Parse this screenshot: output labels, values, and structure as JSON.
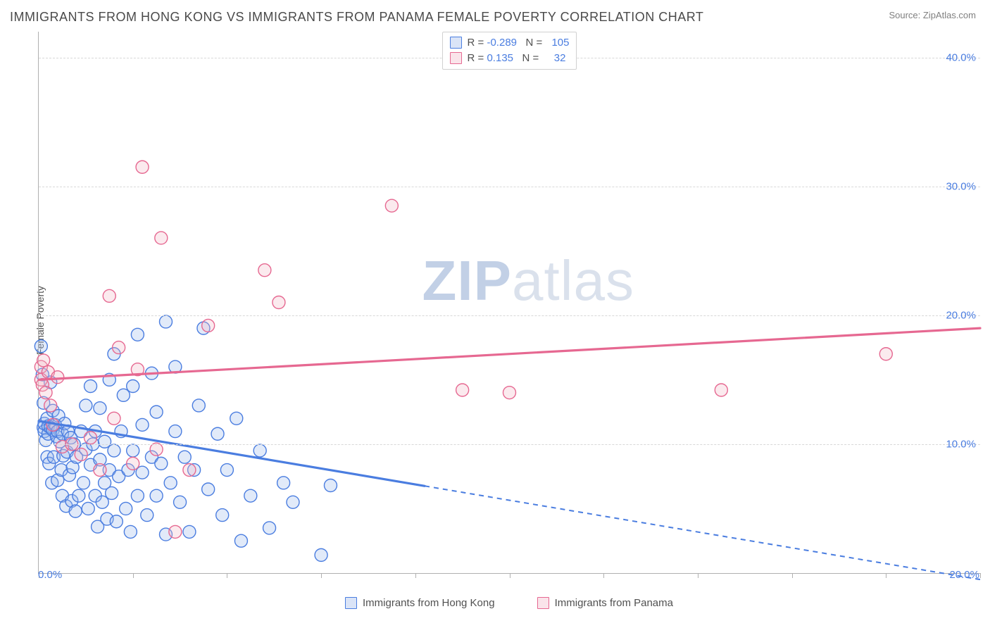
{
  "title": "IMMIGRANTS FROM HONG KONG VS IMMIGRANTS FROM PANAMA FEMALE POVERTY CORRELATION CHART",
  "source_prefix": "Source: ",
  "source_name": "ZipAtlas.com",
  "y_axis_label": "Female Poverty",
  "watermark_a": "ZIP",
  "watermark_b": "atlas",
  "chart": {
    "type": "scatter",
    "background_color": "#ffffff",
    "grid_color": "#d8d8d8",
    "axis_color": "#b0b0b0",
    "tick_label_color": "#4a7de0",
    "xlim": [
      0,
      20
    ],
    "ylim": [
      0,
      42
    ],
    "x_ticks": [
      0,
      2,
      4,
      6,
      8,
      10,
      12,
      14,
      16,
      18,
      20
    ],
    "x_tick_labels": {
      "0": "0.0%",
      "20": "20.0%"
    },
    "y_gridlines": [
      10,
      20,
      30,
      40
    ],
    "y_tick_labels": {
      "10": "10.0%",
      "20": "20.0%",
      "30": "30.0%",
      "40": "40.0%"
    },
    "marker_radius": 9,
    "marker_stroke_width": 1.4,
    "marker_fill_opacity": 0.3,
    "line_width": 3.2,
    "series": [
      {
        "name": "Immigrants from Hong Kong",
        "color_fill": "#9cb8ea",
        "color_stroke": "#4a7de0",
        "r_label": "R =",
        "r_value": "-0.289",
        "n_label": "N =",
        "n_value": "105",
        "trend": {
          "y_at_x0": 11.8,
          "y_at_x20": -0.5,
          "solid_until_x": 8.2
        },
        "points": [
          [
            0.05,
            17.6
          ],
          [
            0.08,
            15.4
          ],
          [
            0.1,
            13.2
          ],
          [
            0.1,
            11.3
          ],
          [
            0.12,
            11.0
          ],
          [
            0.12,
            11.6
          ],
          [
            0.15,
            10.3
          ],
          [
            0.18,
            9.0
          ],
          [
            0.18,
            12.0
          ],
          [
            0.2,
            11.4
          ],
          [
            0.2,
            10.8
          ],
          [
            0.22,
            8.5
          ],
          [
            0.25,
            11.3
          ],
          [
            0.25,
            14.8
          ],
          [
            0.28,
            7.0
          ],
          [
            0.3,
            11.1
          ],
          [
            0.3,
            12.6
          ],
          [
            0.32,
            9.0
          ],
          [
            0.35,
            11.5
          ],
          [
            0.38,
            10.6
          ],
          [
            0.4,
            7.2
          ],
          [
            0.4,
            11.0
          ],
          [
            0.42,
            12.2
          ],
          [
            0.45,
            10.2
          ],
          [
            0.48,
            8.0
          ],
          [
            0.5,
            6.0
          ],
          [
            0.5,
            10.8
          ],
          [
            0.52,
            9.1
          ],
          [
            0.55,
            11.6
          ],
          [
            0.58,
            5.2
          ],
          [
            0.6,
            9.4
          ],
          [
            0.62,
            11.0
          ],
          [
            0.65,
            7.6
          ],
          [
            0.68,
            10.5
          ],
          [
            0.7,
            5.6
          ],
          [
            0.72,
            8.2
          ],
          [
            0.75,
            10.0
          ],
          [
            0.78,
            4.8
          ],
          [
            0.8,
            9.0
          ],
          [
            0.85,
            6.0
          ],
          [
            0.9,
            11.0
          ],
          [
            0.95,
            7.0
          ],
          [
            1.0,
            9.6
          ],
          [
            1.0,
            13.0
          ],
          [
            1.05,
            5.0
          ],
          [
            1.1,
            8.4
          ],
          [
            1.1,
            14.5
          ],
          [
            1.15,
            10.0
          ],
          [
            1.2,
            6.0
          ],
          [
            1.2,
            11.0
          ],
          [
            1.25,
            3.6
          ],
          [
            1.3,
            8.8
          ],
          [
            1.3,
            12.8
          ],
          [
            1.35,
            5.5
          ],
          [
            1.4,
            7.0
          ],
          [
            1.4,
            10.2
          ],
          [
            1.45,
            4.2
          ],
          [
            1.5,
            8.0
          ],
          [
            1.5,
            15.0
          ],
          [
            1.55,
            6.2
          ],
          [
            1.6,
            9.5
          ],
          [
            1.6,
            17.0
          ],
          [
            1.65,
            4.0
          ],
          [
            1.7,
            7.5
          ],
          [
            1.75,
            11.0
          ],
          [
            1.8,
            13.8
          ],
          [
            1.85,
            5.0
          ],
          [
            1.9,
            8.0
          ],
          [
            1.95,
            3.2
          ],
          [
            2.0,
            9.5
          ],
          [
            2.0,
            14.5
          ],
          [
            2.1,
            6.0
          ],
          [
            2.1,
            18.5
          ],
          [
            2.2,
            7.8
          ],
          [
            2.2,
            11.5
          ],
          [
            2.3,
            4.5
          ],
          [
            2.4,
            9.0
          ],
          [
            2.4,
            15.5
          ],
          [
            2.5,
            6.0
          ],
          [
            2.5,
            12.5
          ],
          [
            2.6,
            8.5
          ],
          [
            2.7,
            3.0
          ],
          [
            2.7,
            19.5
          ],
          [
            2.8,
            7.0
          ],
          [
            2.9,
            11.0
          ],
          [
            2.9,
            16.0
          ],
          [
            3.0,
            5.5
          ],
          [
            3.1,
            9.0
          ],
          [
            3.2,
            3.2
          ],
          [
            3.3,
            8.0
          ],
          [
            3.4,
            13.0
          ],
          [
            3.5,
            19.0
          ],
          [
            3.6,
            6.5
          ],
          [
            3.8,
            10.8
          ],
          [
            3.9,
            4.5
          ],
          [
            4.0,
            8.0
          ],
          [
            4.2,
            12.0
          ],
          [
            4.3,
            2.5
          ],
          [
            4.5,
            6.0
          ],
          [
            4.7,
            9.5
          ],
          [
            4.9,
            3.5
          ],
          [
            5.2,
            7.0
          ],
          [
            5.4,
            5.5
          ],
          [
            6.0,
            1.4
          ],
          [
            6.2,
            6.8
          ]
        ]
      },
      {
        "name": "Immigrants from Panama",
        "color_fill": "#f3b8c8",
        "color_stroke": "#e66891",
        "r_label": "R =",
        "r_value": "0.135",
        "n_label": "N =",
        "n_value": "32",
        "trend": {
          "y_at_x0": 15.0,
          "y_at_x20": 19.0,
          "solid_until_x": 20
        },
        "points": [
          [
            0.05,
            16.0
          ],
          [
            0.05,
            15.0
          ],
          [
            0.08,
            14.6
          ],
          [
            0.1,
            16.5
          ],
          [
            0.15,
            14.0
          ],
          [
            0.2,
            15.6
          ],
          [
            0.25,
            13.0
          ],
          [
            0.3,
            11.5
          ],
          [
            0.4,
            15.2
          ],
          [
            0.5,
            9.8
          ],
          [
            0.7,
            10.0
          ],
          [
            0.9,
            9.2
          ],
          [
            1.1,
            10.5
          ],
          [
            1.3,
            8.0
          ],
          [
            1.5,
            21.5
          ],
          [
            1.6,
            12.0
          ],
          [
            1.7,
            17.5
          ],
          [
            2.0,
            8.5
          ],
          [
            2.1,
            15.8
          ],
          [
            2.2,
            31.5
          ],
          [
            2.5,
            9.6
          ],
          [
            2.6,
            26.0
          ],
          [
            2.9,
            3.2
          ],
          [
            3.2,
            8.0
          ],
          [
            3.6,
            19.2
          ],
          [
            4.8,
            23.5
          ],
          [
            5.1,
            21.0
          ],
          [
            7.5,
            28.5
          ],
          [
            9.0,
            14.2
          ],
          [
            10.0,
            14.0
          ],
          [
            14.5,
            14.2
          ],
          [
            18.0,
            17.0
          ]
        ]
      }
    ]
  }
}
